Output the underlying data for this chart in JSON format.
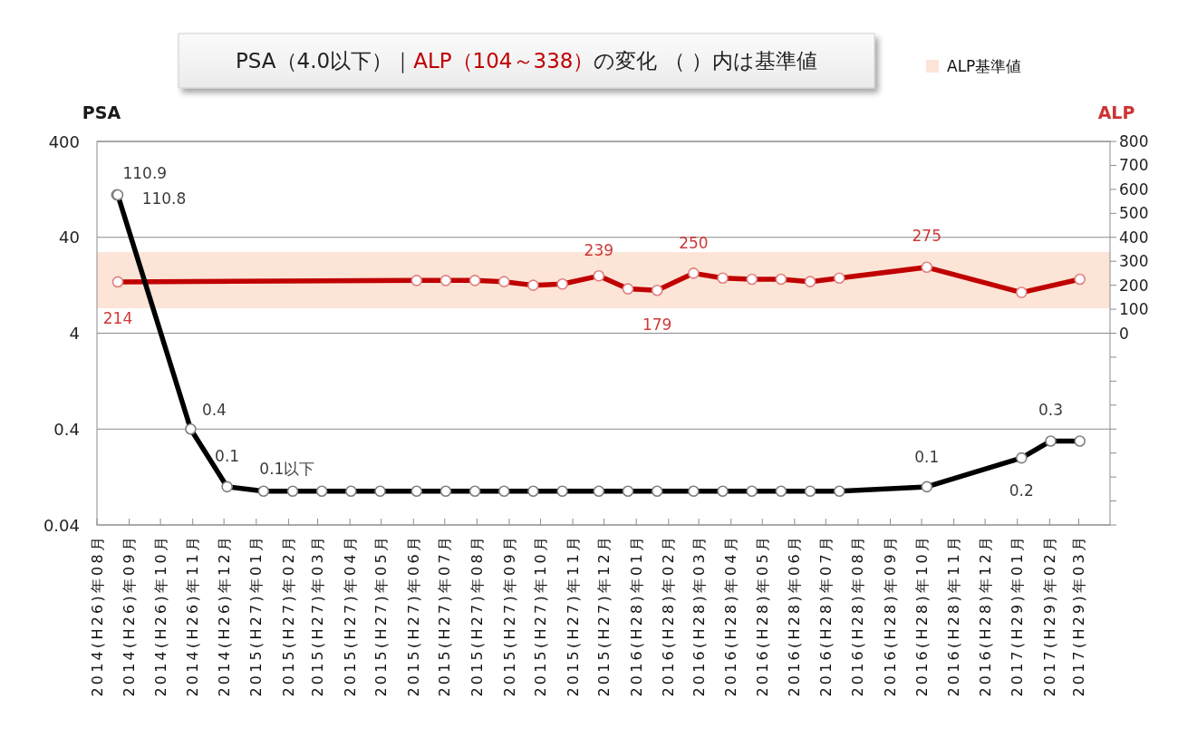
{
  "chart_data": {
    "type": "line",
    "title": "PSA（4.0以下）｜ALP（104～338）の変化 （ ）内は基準値",
    "ylabel": "PSA",
    "y2label": "ALP",
    "xlim": [
      "2014-08-01",
      "2017-03-31"
    ],
    "xticks": [
      {
        "value": "2014-08-01",
        "label": "2014(H26)年08月"
      },
      {
        "value": "2014-09-01",
        "label": "2014(H26)年09月"
      },
      {
        "value": "2014-10-01",
        "label": "2014(H26)年10月"
      },
      {
        "value": "2014-11-01",
        "label": "2014(H26)年11月"
      },
      {
        "value": "2014-12-01",
        "label": "2014(H26)年12月"
      },
      {
        "value": "2015-01-01",
        "label": "2015(H27)年01月"
      },
      {
        "value": "2015-02-01",
        "label": "2015(H27)年02月"
      },
      {
        "value": "2015-03-01",
        "label": "2015(H27)年03月"
      },
      {
        "value": "2015-04-01",
        "label": "2015(H27)年04月"
      },
      {
        "value": "2015-05-01",
        "label": "2015(H27)年05月"
      },
      {
        "value": "2015-06-01",
        "label": "2015(H27)年06月"
      },
      {
        "value": "2015-07-01",
        "label": "2015(H27)年07月"
      },
      {
        "value": "2015-08-01",
        "label": "2015(H27)年08月"
      },
      {
        "value": "2015-09-01",
        "label": "2015(H27)年09月"
      },
      {
        "value": "2015-10-01",
        "label": "2015(H27)年10月"
      },
      {
        "value": "2015-11-01",
        "label": "2015(H27)年11月"
      },
      {
        "value": "2015-12-01",
        "label": "2015(H27)年12月"
      },
      {
        "value": "2016-01-01",
        "label": "2016(H28)年01月"
      },
      {
        "value": "2016-02-01",
        "label": "2016(H28)年02月"
      },
      {
        "value": "2016-03-01",
        "label": "2016(H28)年03月"
      },
      {
        "value": "2016-04-01",
        "label": "2016(H28)年04月"
      },
      {
        "value": "2016-05-01",
        "label": "2016(H28)年05月"
      },
      {
        "value": "2016-06-01",
        "label": "2016(H28)年06月"
      },
      {
        "value": "2016-07-01",
        "label": "2016(H28)年07月"
      },
      {
        "value": "2016-08-01",
        "label": "2016(H28)年08月"
      },
      {
        "value": "2016-09-01",
        "label": "2016(H28)年09月"
      },
      {
        "value": "2016-10-01",
        "label": "2016(H28)年10月"
      },
      {
        "value": "2016-11-01",
        "label": "2016(H28)年11月"
      },
      {
        "value": "2016-12-01",
        "label": "2016(H28)年12月"
      },
      {
        "value": "2017-01-01",
        "label": "2017(H29)年01月"
      },
      {
        "value": "2017-02-01",
        "label": "2017(H29)年02月"
      },
      {
        "value": "2017-03-01",
        "label": "2017(H29)年03月"
      }
    ],
    "log": "y",
    "ylim": [
      0.04,
      400
    ],
    "yticks": [
      0.04,
      0.4,
      4,
      40,
      400
    ],
    "y2lim": [
      -800,
      800
    ],
    "y2ticks": [
      {
        "value": -800,
        "label": null
      },
      {
        "value": -700,
        "label": null
      },
      {
        "value": -600,
        "label": null
      },
      {
        "value": -500,
        "label": null
      },
      {
        "value": -400,
        "label": null
      },
      {
        "value": -300,
        "label": null
      },
      {
        "value": -200,
        "label": null
      },
      {
        "value": -100,
        "label": null
      },
      0,
      100,
      200,
      300,
      400,
      500,
      600,
      700,
      800
    ],
    "grid": "y",
    "legend": "top right",
    "marker": "circle",
    "line_style": "solid",
    "bands": [
      {
        "axis": "y2",
        "from": 104,
        "to": 338,
        "label": "ALP基準値",
        "color": "#fce4d6"
      }
    ],
    "series": [
      {
        "axis": "y2",
        "color": "#c00000",
        "x": [
          "2014-08-21",
          "2015-06-04",
          "2015-07-02",
          "2015-07-30",
          "2015-08-27",
          "2015-09-24",
          "2015-10-22",
          "2015-11-26",
          "2015-12-24",
          "2016-01-21",
          "2016-02-25",
          "2016-03-24",
          "2016-04-21",
          "2016-05-19",
          "2016-06-16",
          "2016-07-14",
          "2016-10-06",
          "2017-01-05",
          "2017-03-02"
        ],
        "values": [
          214,
          220,
          220,
          220,
          215,
          200,
          205,
          239,
          185,
          179,
          250,
          230,
          225,
          225,
          215,
          230,
          275,
          170,
          225
        ],
        "value_labels": [
          "214",
          null,
          null,
          null,
          null,
          null,
          null,
          "239",
          null,
          "179",
          "250",
          null,
          null,
          null,
          null,
          null,
          "275",
          null,
          null
        ]
      },
      {
        "axis": "y",
        "color": "#000000",
        "x": [
          "2014-08-20",
          "2014-08-21",
          "2014-10-30",
          "2014-12-04",
          "2015-01-08",
          "2015-02-05",
          "2015-03-05",
          "2015-04-02",
          "2015-04-30",
          "2015-06-04",
          "2015-07-02",
          "2015-07-30",
          "2015-08-27",
          "2015-09-24",
          "2015-10-22",
          "2015-11-26",
          "2015-12-24",
          "2016-01-21",
          "2016-02-25",
          "2016-03-24",
          "2016-04-21",
          "2016-05-19",
          "2016-06-16",
          "2016-07-14",
          "2016-10-06",
          "2017-01-05",
          "2017-02-02",
          "2017-03-02"
        ],
        "values": [
          110.9,
          110.8,
          0.4,
          0.1,
          0.09,
          0.09,
          0.09,
          0.09,
          0.09,
          0.09,
          0.09,
          0.09,
          0.09,
          0.09,
          0.09,
          0.09,
          0.09,
          0.09,
          0.09,
          0.09,
          0.09,
          0.09,
          0.09,
          0.09,
          0.1,
          0.2,
          0.3,
          0.3
        ],
        "value_labels": [
          "110.9",
          "110.8",
          "0.4",
          "0.1",
          "0.1以下",
          null,
          null,
          null,
          null,
          null,
          null,
          null,
          null,
          null,
          null,
          null,
          null,
          null,
          null,
          null,
          null,
          null,
          null,
          null,
          "0.1",
          "0.2",
          "0.3",
          null
        ]
      }
    ]
  }
}
